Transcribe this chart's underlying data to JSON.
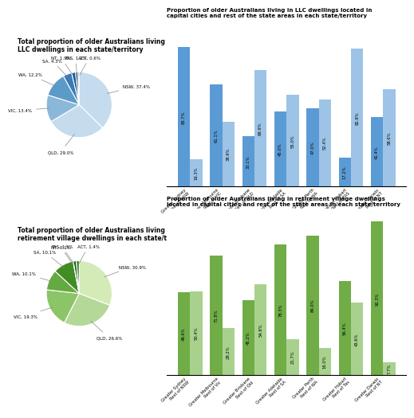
{
  "pie1_values": [
    37.4,
    29.0,
    13.4,
    12.2,
    4.3,
    1.9,
    1.2,
    0.6
  ],
  "pie1_labels": [
    "NSW, 37.4%",
    "QLD, 29.0%",
    "VIC, 13.4%",
    "WA, 12.2%",
    "SA, 4.3%",
    "NT, 1.9%",
    "TAS, 1.2%",
    "ACT, 0.6%"
  ],
  "pie1_colors": [
    "#b8d4ea",
    "#b8d4ea",
    "#7aafd8",
    "#5a9fd0",
    "#3a85bc",
    "#1e6096",
    "#1a5080",
    "#236ea8"
  ],
  "pie1_title": "Total proportion of older Australians living in\nLLC dwellings in each state/territory",
  "bar1_groups": [
    "Greater Sydney\nRest of NSW",
    "Greater Melbourne\nRest of VIC",
    "Greater Brisbane\nRest of QLD",
    "Greater Adelaide\nRest of SA",
    "Greater Perth\nRest of WA",
    "Greater Hobart\nRest of TAS",
    "Greater Darwin\nRest of NT"
  ],
  "bar1_city": [
    83.7,
    61.1,
    30.1,
    45.0,
    47.0,
    17.2,
    41.4
  ],
  "bar1_rest": [
    16.3,
    38.9,
    69.9,
    55.0,
    52.4,
    82.8,
    58.6
  ],
  "bar1_color": "#5b9bd5",
  "bar1_title": "Proportion of older Australians living in LLC dwellings located in\ncapital cities and rest of the state areas in each state/territory",
  "pie2_values": [
    30.9,
    26.6,
    19.3,
    10.1,
    10.1,
    0.1,
    1.5,
    1.4
  ],
  "pie2_labels": [
    "NSW, 30.9%",
    "QLD, 26.6%",
    "VIC, 19.3%",
    "WA, 10.1%",
    "SA, 10.1%",
    "NT, 0.1%",
    "TAS, 1.5%",
    "ACT, 1.4%"
  ],
  "pie2_colors": [
    "#d0e8b8",
    "#b8dca0",
    "#90c870",
    "#6aae4a",
    "#48922e",
    "#1a5e10",
    "#246618",
    "#307a20"
  ],
  "pie2_title": "Total proportion of older Australians living in\nretirement village dwellings in each state/territory",
  "bar2_groups": [
    "Greater Sydney\nRest of NSW",
    "Greater Melbourne\nRest of Vic",
    "Greater Brisbane\nRest of Qld",
    "Greater Adelaide\nRest of SA",
    "Greater Perth\nRest of WA",
    "Greater Hobart\nRest of Tas",
    "Greater Darwin\nRest of NT"
  ],
  "bar2_city": [
    49.6,
    71.8,
    45.2,
    78.3,
    84.0,
    56.4,
    92.3
  ],
  "bar2_rest": [
    50.4,
    28.2,
    54.8,
    21.7,
    16.0,
    43.6,
    7.7
  ],
  "bar2_color": "#70ad47",
  "bar2_title": "Proportion of older Australians living in retirement village dwellings\nlocated in capital cities and rest of the state areas in each state/territory"
}
